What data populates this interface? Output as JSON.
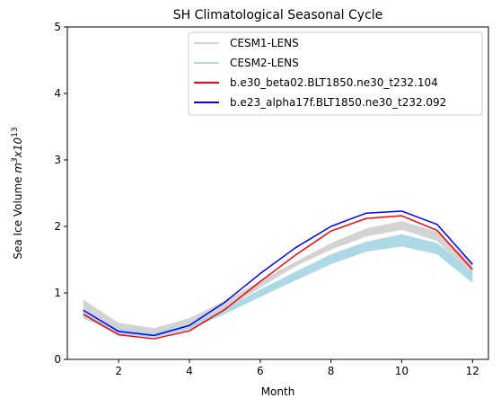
{
  "chart_data": {
    "type": "line",
    "title": "SH Climatological Seasonal Cycle",
    "xlabel": "Month",
    "ylabel_base": "Sea Ice Volume ",
    "ylabel_unit": "m",
    "ylabel_unit_exp": "3",
    "ylabel_mult": "x10",
    "ylabel_mult_exp": "13",
    "xlim": [
      0.55,
      12.45
    ],
    "ylim": [
      0,
      5
    ],
    "xticks": [
      2,
      4,
      6,
      8,
      10,
      12
    ],
    "yticks": [
      0,
      1,
      2,
      3,
      4,
      5
    ],
    "legend_position": "top-right",
    "x": [
      1,
      2,
      3,
      4,
      5,
      6,
      7,
      8,
      9,
      10,
      11,
      12
    ],
    "bands": [
      {
        "name": "CESM1-LENS",
        "color": "#d3d3d3",
        "lower": [
          0.62,
          0.38,
          0.33,
          0.46,
          0.75,
          1.08,
          1.4,
          1.65,
          1.85,
          1.95,
          1.78,
          1.25
        ],
        "upper": [
          0.9,
          0.55,
          0.47,
          0.62,
          0.88,
          1.18,
          1.47,
          1.75,
          1.97,
          2.08,
          1.92,
          1.45
        ]
      },
      {
        "name": "CESM2-LENS",
        "color": "#add8e6",
        "lower": [
          0.62,
          0.38,
          0.33,
          0.45,
          0.68,
          0.94,
          1.19,
          1.43,
          1.62,
          1.7,
          1.58,
          1.15
        ],
        "upper": [
          0.72,
          0.45,
          0.4,
          0.52,
          0.77,
          1.05,
          1.32,
          1.58,
          1.77,
          1.88,
          1.75,
          1.3
        ]
      }
    ],
    "series": [
      {
        "name": "b.e30_beta02.BLT1850.ne30_t232.104",
        "color": "#ff0000",
        "values": [
          0.68,
          0.37,
          0.31,
          0.43,
          0.75,
          1.17,
          1.57,
          1.93,
          2.12,
          2.16,
          1.94,
          1.35
        ]
      },
      {
        "name": "b.e23_alpha17f.BLT1850.ne30_t232.092",
        "color": "#0000ff",
        "values": [
          0.74,
          0.42,
          0.36,
          0.51,
          0.86,
          1.29,
          1.68,
          2.0,
          2.2,
          2.23,
          2.03,
          1.43
        ]
      }
    ]
  }
}
